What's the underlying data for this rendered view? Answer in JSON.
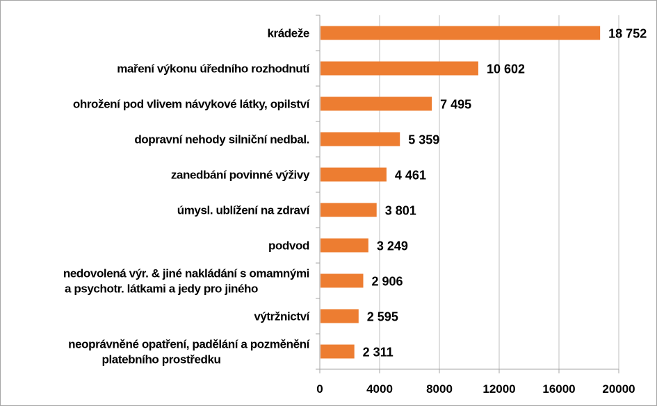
{
  "chart_data": {
    "type": "bar",
    "orientation": "horizontal",
    "title": "",
    "xlabel": "",
    "ylabel": "",
    "categories": [
      [
        "krádeže"
      ],
      [
        "maření výkonu úředního rozhodnutí"
      ],
      [
        "ohrožení pod vlivem návykové látky, opilství"
      ],
      [
        "dopravní nehody silniční nedbal."
      ],
      [
        "zanedbání povinné výživy"
      ],
      [
        "úmysl. ublížení na zdraví"
      ],
      [
        "podvod"
      ],
      [
        "nedovolená výr. & jiné nakládání s omamnými",
        "a psychotr. látkami a jedy pro jiného"
      ],
      [
        "výtržnictví"
      ],
      [
        "neoprávněné opatření, padělání a pozměnění",
        "platebního prostředku"
      ]
    ],
    "values": [
      18752,
      10602,
      7495,
      5359,
      4461,
      3801,
      3249,
      2906,
      2595,
      2311
    ],
    "data_labels": [
      "18 752",
      "10 602",
      "7 495",
      "5 359",
      "4 461",
      "3 801",
      "3 249",
      "2 906",
      "2 595",
      "2 311"
    ],
    "xlim": [
      0,
      20000
    ],
    "xticks": [
      0,
      4000,
      8000,
      12000,
      16000,
      20000
    ],
    "xtick_labels": [
      "0",
      "4000",
      "8000",
      "12000",
      "16000",
      "20000"
    ],
    "grid": "vertical",
    "legend": "none",
    "colors": {
      "bar": "#ed7d31",
      "grid": "#bfbfbf",
      "axis": "#a6a6a6"
    }
  }
}
